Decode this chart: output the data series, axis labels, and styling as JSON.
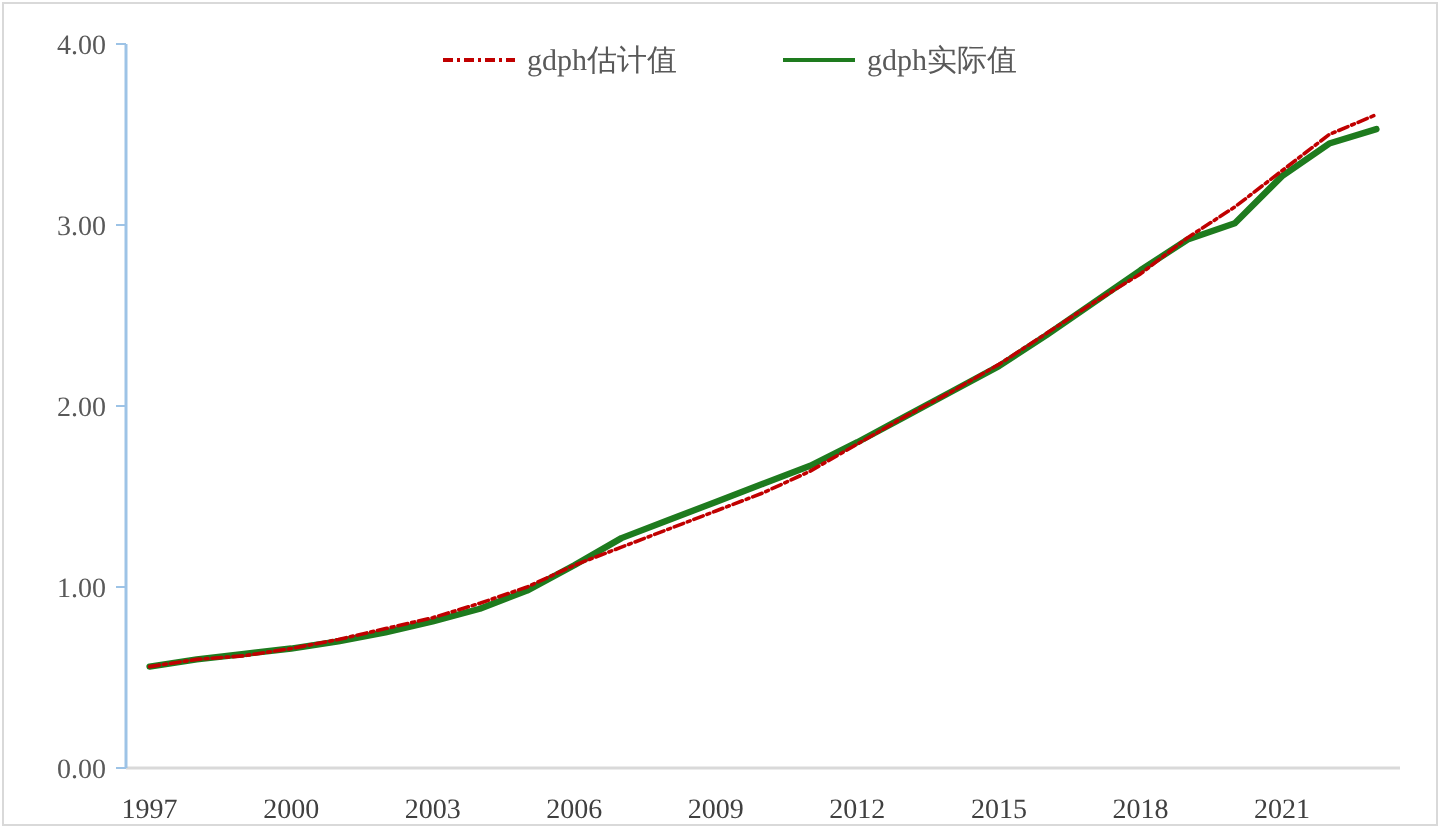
{
  "chart_data": {
    "type": "line",
    "x": [
      1997,
      1998,
      1999,
      2000,
      2001,
      2002,
      2003,
      2004,
      2005,
      2006,
      2007,
      2008,
      2009,
      2010,
      2011,
      2012,
      2013,
      2014,
      2015,
      2016,
      2017,
      2018,
      2019,
      2020,
      2021,
      2022,
      2023
    ],
    "series": [
      {
        "name": "gdph估计值",
        "color": "#c00000",
        "line_style": "dashdot",
        "values": [
          0.56,
          0.6,
          0.62,
          0.66,
          0.71,
          0.77,
          0.83,
          0.91,
          1.0,
          1.12,
          1.22,
          1.32,
          1.42,
          1.52,
          1.64,
          1.79,
          1.94,
          2.08,
          2.23,
          2.4,
          2.57,
          2.73,
          2.93,
          3.1,
          3.3,
          3.5,
          3.61
        ]
      },
      {
        "name": "gdph实际值",
        "color": "#1e7b1e",
        "line_style": "solid",
        "values": [
          0.56,
          0.6,
          0.63,
          0.66,
          0.7,
          0.75,
          0.81,
          0.88,
          0.98,
          1.12,
          1.27,
          1.37,
          1.47,
          1.57,
          1.67,
          1.8,
          1.94,
          2.08,
          2.22,
          2.39,
          2.57,
          2.75,
          2.92,
          3.01,
          3.27,
          3.45,
          3.53
        ]
      }
    ],
    "xlim": [
      1996.5,
      2023.5
    ],
    "xticks": [
      1997,
      2000,
      2003,
      2006,
      2009,
      2012,
      2015,
      2018,
      2021
    ],
    "ylim": [
      0,
      4
    ],
    "yticks": [
      {
        "value": 0,
        "label": "0.00"
      },
      {
        "value": 1,
        "label": "1.00"
      },
      {
        "value": 2,
        "label": "2.00"
      },
      {
        "value": 3,
        "label": "3.00"
      },
      {
        "value": 4,
        "label": "4.00"
      }
    ],
    "grid": false,
    "legend": "top"
  }
}
